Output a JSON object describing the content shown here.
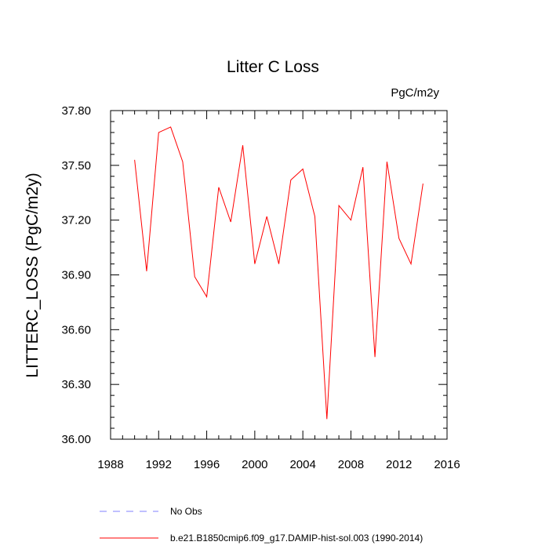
{
  "chart_data": {
    "type": "line",
    "title": "Litter C Loss",
    "units_label": "PgC/m2y",
    "ylabel": "LITTERC_LOSS  (PgC/m2y)",
    "xlabel": "",
    "xlim": [
      1988,
      2016
    ],
    "ylim": [
      36.0,
      37.8
    ],
    "x_ticks": [
      "1988",
      "1992",
      "1996",
      "2000",
      "2004",
      "2008",
      "2012",
      "2016"
    ],
    "y_ticks": [
      "36.00",
      "36.30",
      "36.60",
      "36.90",
      "37.20",
      "37.50",
      "37.80"
    ],
    "grid": false,
    "legend_position": "bottom",
    "legend": [
      {
        "label": "No Obs",
        "color": "#8080ff",
        "style": "dashed"
      },
      {
        "label": "b.e21.B1850cmip6.f09_g17.DAMIP-hist-sol.003 (1990-2014)",
        "color": "#ff0000",
        "style": "solid"
      }
    ],
    "series": [
      {
        "color": "#ff0000",
        "x": [
          1990,
          1991,
          1992,
          1993,
          1994,
          1995,
          1996,
          1997,
          1998,
          1999,
          2000,
          2001,
          2002,
          2003,
          2004,
          2005,
          2006,
          2007,
          2008,
          2009,
          2010,
          2011,
          2012,
          2013,
          2014
        ],
        "y": [
          37.53,
          36.92,
          37.68,
          37.71,
          37.52,
          36.89,
          36.78,
          37.38,
          37.19,
          37.61,
          36.96,
          37.22,
          36.96,
          37.42,
          37.48,
          37.22,
          36.11,
          37.28,
          37.2,
          37.49,
          36.45,
          37.52,
          37.1,
          36.96,
          37.4
        ]
      }
    ]
  }
}
